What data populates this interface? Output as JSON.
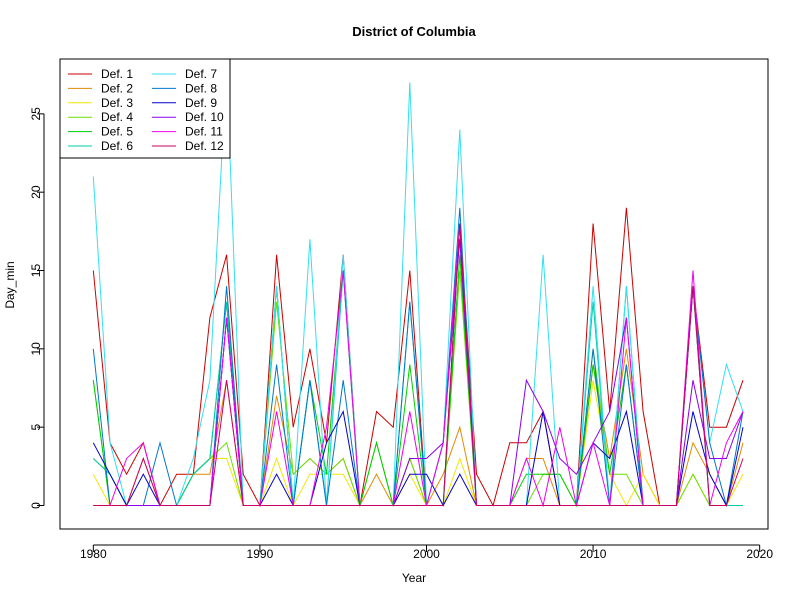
{
  "chart_data": {
    "type": "line",
    "title": "District of Columbia",
    "xlabel": "Year",
    "ylabel": "Day_min",
    "xlim": [
      1978,
      2020.5
    ],
    "ylim": [
      -1.5,
      28.5
    ],
    "x_ticks": [
      1980,
      1990,
      2000,
      2010,
      2020
    ],
    "y_ticks": [
      0,
      5,
      10,
      15,
      20,
      25
    ],
    "legend_position": "top-left",
    "x": [
      1980,
      1981,
      1982,
      1983,
      1984,
      1985,
      1986,
      1987,
      1988,
      1989,
      1990,
      1991,
      1992,
      1993,
      1994,
      1995,
      1996,
      1997,
      1998,
      1999,
      2000,
      2001,
      2002,
      2003,
      2004,
      2005,
      2006,
      2007,
      2008,
      2009,
      2010,
      2011,
      2012,
      2013,
      2014,
      2015,
      2016,
      2017,
      2018,
      2019
    ],
    "series": [
      {
        "name": "Def. 1",
        "color": "#CC0000",
        "values": [
          15,
          4,
          2,
          4,
          0,
          2,
          2,
          12,
          16,
          2,
          0,
          16,
          5,
          10,
          4,
          16,
          0,
          6,
          5,
          15,
          0,
          0,
          18,
          2,
          0,
          4,
          4,
          6,
          0,
          0,
          18,
          6,
          19,
          6,
          0,
          0,
          14,
          5,
          5,
          8
        ]
      },
      {
        "name": "Def. 2",
        "color": "#E08A00",
        "values": [
          3,
          2,
          0,
          3,
          0,
          0,
          2,
          2,
          8,
          0,
          0,
          7,
          2,
          3,
          2,
          3,
          0,
          2,
          0,
          3,
          0,
          2,
          5,
          0,
          0,
          0,
          3,
          3,
          0,
          0,
          9,
          3,
          10,
          2,
          0,
          0,
          4,
          2,
          0,
          4
        ]
      },
      {
        "name": "Def. 3",
        "color": "#F2E600",
        "values": [
          2,
          0,
          0,
          0,
          0,
          0,
          2,
          3,
          3,
          0,
          0,
          3,
          0,
          2,
          2,
          2,
          0,
          0,
          0,
          2,
          0,
          0,
          3,
          0,
          0,
          0,
          0,
          0,
          0,
          0,
          8,
          2,
          0,
          2,
          0,
          0,
          2,
          0,
          0,
          2
        ]
      },
      {
        "name": "Def. 4",
        "color": "#66E000",
        "values": [
          8,
          0,
          0,
          0,
          0,
          0,
          2,
          3,
          4,
          0,
          0,
          13,
          2,
          3,
          2,
          3,
          0,
          4,
          0,
          3,
          0,
          0,
          15,
          0,
          0,
          0,
          0,
          2,
          2,
          0,
          10,
          2,
          2,
          0,
          0,
          0,
          2,
          0,
          0,
          0
        ]
      },
      {
        "name": "Def. 5",
        "color": "#00CC00",
        "values": [
          8,
          0,
          0,
          0,
          0,
          0,
          2,
          3,
          13,
          0,
          0,
          14,
          0,
          8,
          2,
          15,
          0,
          4,
          0,
          9,
          0,
          0,
          16,
          0,
          0,
          0,
          2,
          2,
          2,
          0,
          9,
          2,
          9,
          0,
          0,
          0,
          14,
          0,
          0,
          0
        ]
      },
      {
        "name": "Def. 6",
        "color": "#00CCAA",
        "values": [
          3,
          2,
          0,
          0,
          0,
          0,
          2,
          3,
          13,
          0,
          0,
          14,
          0,
          8,
          0,
          15,
          0,
          0,
          0,
          13,
          0,
          0,
          18,
          0,
          0,
          0,
          0,
          0,
          0,
          0,
          13,
          0,
          14,
          0,
          0,
          0,
          14,
          0,
          0,
          0
        ]
      },
      {
        "name": "Def. 7",
        "color": "#33E0F0",
        "values": [
          21,
          4,
          0,
          0,
          0,
          0,
          3,
          8,
          28,
          0,
          0,
          14,
          0,
          17,
          0,
          16,
          0,
          0,
          0,
          27,
          0,
          4,
          24,
          0,
          0,
          0,
          0,
          16,
          0,
          0,
          14,
          0,
          14,
          0,
          0,
          0,
          14,
          4,
          9,
          6
        ]
      },
      {
        "name": "Def. 8",
        "color": "#0077CC",
        "values": [
          10,
          0,
          0,
          0,
          4,
          0,
          0,
          0,
          14,
          0,
          0,
          9,
          0,
          8,
          0,
          8,
          0,
          0,
          0,
          13,
          0,
          4,
          19,
          0,
          0,
          0,
          0,
          0,
          0,
          0,
          10,
          0,
          9,
          0,
          0,
          0,
          14,
          4,
          0,
          6
        ]
      },
      {
        "name": "Def. 9",
        "color": "#0000CC",
        "values": [
          4,
          2,
          0,
          2,
          0,
          0,
          0,
          0,
          12,
          0,
          0,
          2,
          0,
          0,
          4,
          6,
          0,
          0,
          0,
          2,
          2,
          0,
          2,
          0,
          0,
          0,
          0,
          6,
          0,
          0,
          4,
          3,
          6,
          0,
          0,
          0,
          6,
          2,
          0,
          5
        ]
      },
      {
        "name": "Def. 10",
        "color": "#8800EE",
        "values": [
          0,
          0,
          0,
          0,
          0,
          0,
          0,
          0,
          12,
          0,
          0,
          0,
          0,
          0,
          0,
          0,
          0,
          0,
          0,
          3,
          3,
          4,
          17,
          0,
          0,
          0,
          8,
          6,
          3,
          2,
          4,
          6,
          12,
          0,
          0,
          0,
          8,
          3,
          3,
          6
        ]
      },
      {
        "name": "Def. 11",
        "color": "#EE00EE",
        "values": [
          0,
          0,
          3,
          4,
          0,
          0,
          0,
          0,
          12,
          0,
          0,
          6,
          0,
          0,
          5,
          15,
          0,
          0,
          0,
          6,
          0,
          4,
          18,
          0,
          0,
          0,
          3,
          0,
          5,
          0,
          4,
          0,
          12,
          0,
          0,
          0,
          15,
          0,
          4,
          6
        ]
      },
      {
        "name": "Def. 12",
        "color": "#CC0066",
        "values": [
          0,
          0,
          0,
          3,
          0,
          0,
          0,
          0,
          8,
          0,
          0,
          0,
          0,
          0,
          0,
          0,
          0,
          0,
          0,
          0,
          0,
          0,
          18,
          0,
          0,
          0,
          0,
          0,
          0,
          0,
          0,
          0,
          0,
          0,
          0,
          0,
          14,
          0,
          0,
          3
        ]
      }
    ]
  }
}
